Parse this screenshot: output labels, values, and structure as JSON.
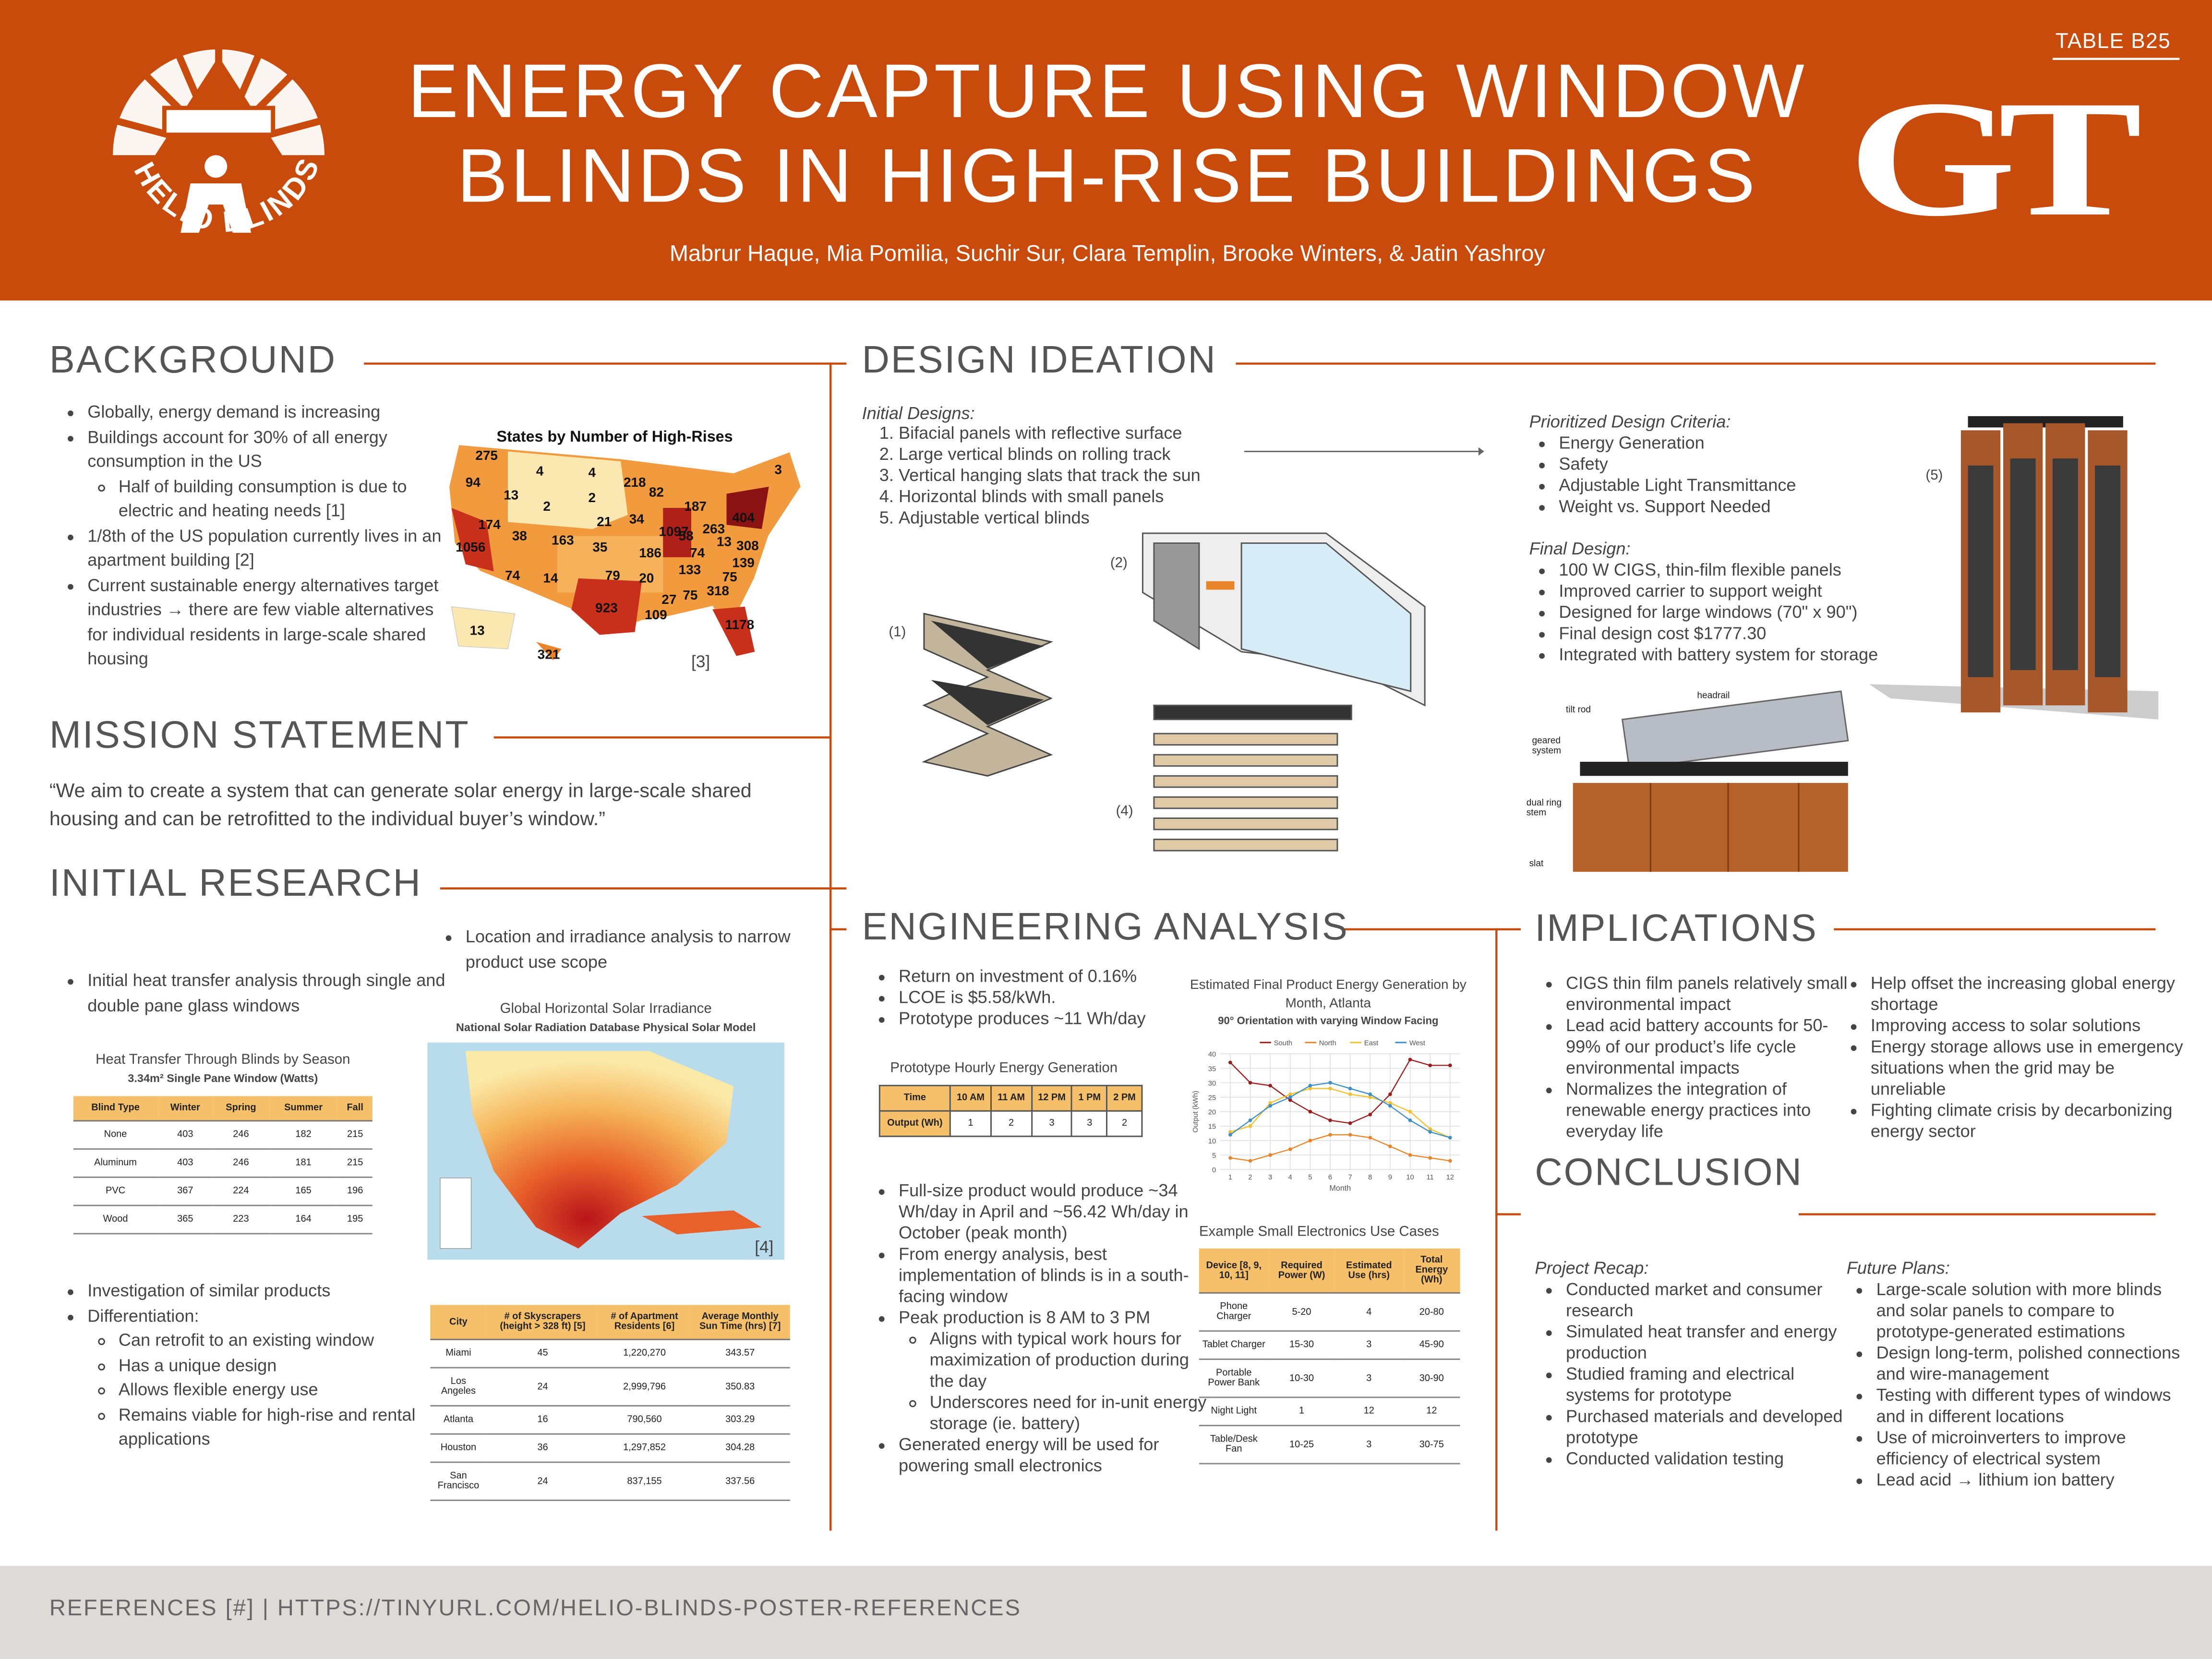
{
  "header": {
    "badge": "TABLE B25",
    "title_line1": "ENERGY CAPTURE USING WINDOW",
    "title_line2": "BLINDS IN HIGH-RISE BUILDINGS",
    "authors": "Mabrur Haque, Mia Pomilia, Suchir Sur, Clara Templin, Brooke Winters, & Jatin Yashroy",
    "logo_left": "HELIO BLINDS",
    "logo_right": "GT"
  },
  "background": {
    "heading": "BACKGROUND",
    "items": [
      "Globally, energy demand is increasing",
      {
        "text": "Buildings account for 30% of all energy consumption in the US",
        "sub": [
          "Half of building consumption is due to electric and heating needs [1]"
        ]
      },
      "1/8th of the US population currently lives in an apartment building [2]",
      "Current sustainable energy alternatives target industries → there are few viable alternatives for individual residents in large-scale shared housing"
    ],
    "map": {
      "title": "States by Number of High-Rises",
      "ref": "[3]",
      "labels": [
        275,
        94,
        13,
        4,
        2,
        4,
        2,
        218,
        82,
        187,
        3,
        174,
        38,
        163,
        35,
        34,
        1097,
        58,
        404,
        263,
        13,
        308,
        1056,
        74,
        14,
        21,
        79,
        186,
        74,
        133,
        139,
        20,
        75,
        318,
        923,
        27,
        75,
        109,
        1178,
        13,
        321
      ]
    }
  },
  "mission": {
    "heading": "MISSION STATEMENT",
    "text": "“We aim to create a system that can generate solar energy in large-scale shared housing and can be retrofitted to the individual buyer’s window.”"
  },
  "research": {
    "heading": "INITIAL RESEARCH",
    "items_a": [
      "Initial heat transfer analysis through single and double pane glass windows"
    ],
    "items_b": [
      "Location and irradiance analysis to narrow product use scope"
    ],
    "items_c": [
      "Investigation of similar products",
      {
        "text": "Differentiation:",
        "sub": [
          "Can retrofit to an existing window",
          "Has a unique design",
          "Allows flexible energy use",
          "Remains viable for high-rise and rental applications"
        ]
      }
    ],
    "heat_table": {
      "title": "Heat Transfer Through Blinds by Season",
      "subtitle": "3.34m² Single Pane Window (Watts)",
      "header": [
        "Blind Type",
        "Winter",
        "Spring",
        "Summer",
        "Fall"
      ],
      "rows": [
        [
          "None",
          "403",
          "246",
          "182",
          "215"
        ],
        [
          "Aluminum",
          "403",
          "246",
          "181",
          "215"
        ],
        [
          "PVC",
          "367",
          "224",
          "165",
          "196"
        ],
        [
          "Wood",
          "365",
          "223",
          "164",
          "195"
        ]
      ]
    },
    "irradiance": {
      "title": "Global Horizontal Solar Irradiance",
      "subtitle": "National Solar Radiation Database Physical Solar Model",
      "ref": "[4]"
    },
    "city_table": {
      "header": [
        "City",
        "# of Skyscrapers (height > 328 ft) [5]",
        "# of Apartment Residents [6]",
        "Average Monthly Sun Time (hrs) [7]"
      ],
      "rows": [
        [
          "Miami",
          "45",
          "1,220,270",
          "343.57"
        ],
        [
          "Los Angeles",
          "24",
          "2,999,796",
          "350.83"
        ],
        [
          "Atlanta",
          "16",
          "790,560",
          "303.29"
        ],
        [
          "Houston",
          "36",
          "1,297,852",
          "304.28"
        ],
        [
          "San Francisco",
          "24",
          "837,155",
          "337.56"
        ]
      ]
    }
  },
  "design": {
    "heading": "DESIGN IDEATION",
    "initial_label": "Initial Designs:",
    "initial": [
      "Bifacial panels with reflective surface",
      "Large vertical blinds on rolling track",
      "Vertical hanging slats that track the sun",
      "Horizontal blinds with small panels",
      "Adjustable vertical blinds"
    ],
    "criteria_label": "Prioritized Design Criteria:",
    "criteria": [
      "Energy Generation",
      "Safety",
      "Adjustable Light Transmittance",
      "Weight vs. Support Needed"
    ],
    "final_label": "Final Design:",
    "final": [
      "100 W CIGS, thin-film flexible panels",
      "Improved carrier to support weight",
      "Designed for large windows (70\" x 90\")",
      "Final design cost $1777.30",
      "Integrated with battery system for storage"
    ],
    "figure_labels": [
      "(1)",
      "(2)",
      "(4)",
      "(5)"
    ],
    "part_labels": [
      "headrail",
      "tilt rod",
      "geared system",
      "dual ring stem",
      "slat"
    ]
  },
  "engineering": {
    "heading": "ENGINEERING ANALYSIS",
    "items_a": [
      "Return on investment of  0.16%",
      "LCOE is $5.58/kWh.",
      "Prototype produces ~11 Wh/day"
    ],
    "hourly_table": {
      "title": "Prototype Hourly Energy Generation",
      "header": [
        "Time",
        "10 AM",
        "11 AM",
        "12 PM",
        "1 PM",
        "2 PM"
      ],
      "rows": [
        [
          "Output (Wh)",
          "1",
          "2",
          "3",
          "3",
          "2"
        ]
      ]
    },
    "items_b": [
      "Full-size product would produce ~34 Wh/day in April and ~56.42 Wh/day in October (peak month)",
      "From energy analysis, best implementation of blinds is in a south-facing window",
      {
        "text": "Peak production is 8 AM to 3 PM",
        "sub": [
          "Aligns with typical work hours for maximization of production during the day",
          "Underscores need for in-unit energy storage (ie. battery)"
        ]
      },
      "Generated energy will be used for powering small electronics"
    ],
    "energy_chart": {
      "type": "line",
      "title": "Estimated Final Product Energy Generation by Month, Atlanta",
      "subtitle": "90° Orientation with varying Window Facing",
      "x_label": "Month",
      "y_label": "Output (kWh)",
      "x": [
        1,
        2,
        3,
        4,
        5,
        6,
        7,
        8,
        9,
        10,
        11,
        12
      ],
      "xlim": [
        0.5,
        12.5
      ],
      "xticks": [
        1,
        2,
        3,
        4,
        5,
        6,
        7,
        8,
        9,
        10,
        11,
        12
      ],
      "ylim": [
        0,
        40
      ],
      "yticks": [
        0,
        5,
        10,
        15,
        20,
        25,
        30,
        35,
        40
      ],
      "grid": true,
      "series": [
        {
          "name": "South",
          "color": "#9b1c1c",
          "values": [
            37,
            30,
            29,
            24,
            20,
            17,
            16,
            19,
            26,
            38,
            36,
            36
          ]
        },
        {
          "name": "North",
          "color": "#e8842a",
          "values": [
            4,
            3,
            5,
            7,
            10,
            12,
            12,
            11,
            8,
            5,
            4,
            3
          ]
        },
        {
          "name": "East",
          "color": "#f0c02e",
          "values": [
            13,
            15,
            23,
            26,
            28,
            28,
            26,
            25,
            23,
            20,
            14,
            11
          ]
        },
        {
          "name": "West",
          "color": "#3d8fc6",
          "values": [
            12,
            17,
            22,
            25,
            29,
            30,
            28,
            26,
            22,
            17,
            13,
            11
          ]
        }
      ]
    },
    "electronics_table": {
      "title": "Example Small Electronics Use Cases",
      "header": [
        "Device [8, 9, 10, 11]",
        "Required Power (W)",
        "Estimated Use (hrs)",
        "Total Energy (Wh)"
      ],
      "rows": [
        [
          "Phone Charger",
          "5-20",
          "4",
          "20-80"
        ],
        [
          "Tablet Charger",
          "15-30",
          "3",
          "45-90"
        ],
        [
          "Portable Power Bank",
          "10-30",
          "3",
          "30-90"
        ],
        [
          "Night Light",
          "1",
          "12",
          "12"
        ],
        [
          "Table/Desk Fan",
          "10-25",
          "3",
          "30-75"
        ]
      ]
    }
  },
  "implications": {
    "heading": "IMPLICATIONS",
    "col1": [
      "CIGS thin film panels relatively small environmental impact",
      "Lead acid battery accounts for 50-99% of our product’s life cycle environmental impacts",
      "Normalizes the integration of renewable energy practices into everyday life"
    ],
    "col2": [
      "Help offset the increasing global energy shortage",
      "Improving access to solar solutions",
      "Energy storage allows use in emergency situations when the grid may be unreliable",
      "Fighting climate crisis by decarbonizing energy sector"
    ]
  },
  "conclusion": {
    "heading": "CONCLUSION",
    "recap_label": "Project Recap:",
    "recap": [
      "Conducted market and consumer research",
      "Simulated heat transfer and energy production",
      "Studied framing and electrical systems for prototype",
      "Purchased materials and developed prototype",
      "Conducted validation testing"
    ],
    "future_label": "Future Plans:",
    "future": [
      "Large-scale solution with more blinds and solar panels to compare to prototype-generated estimations",
      "Design long-term, polished connections and wire-management",
      "Testing with different types of windows and in different locations",
      "Use of microinverters to improve efficiency of electrical system",
      "Lead acid → lithium ion battery"
    ]
  },
  "footer": "REFERENCES [#] | HTTPS://TINYURL.COM/HELIO-BLINDS-POSTER-REFERENCES"
}
